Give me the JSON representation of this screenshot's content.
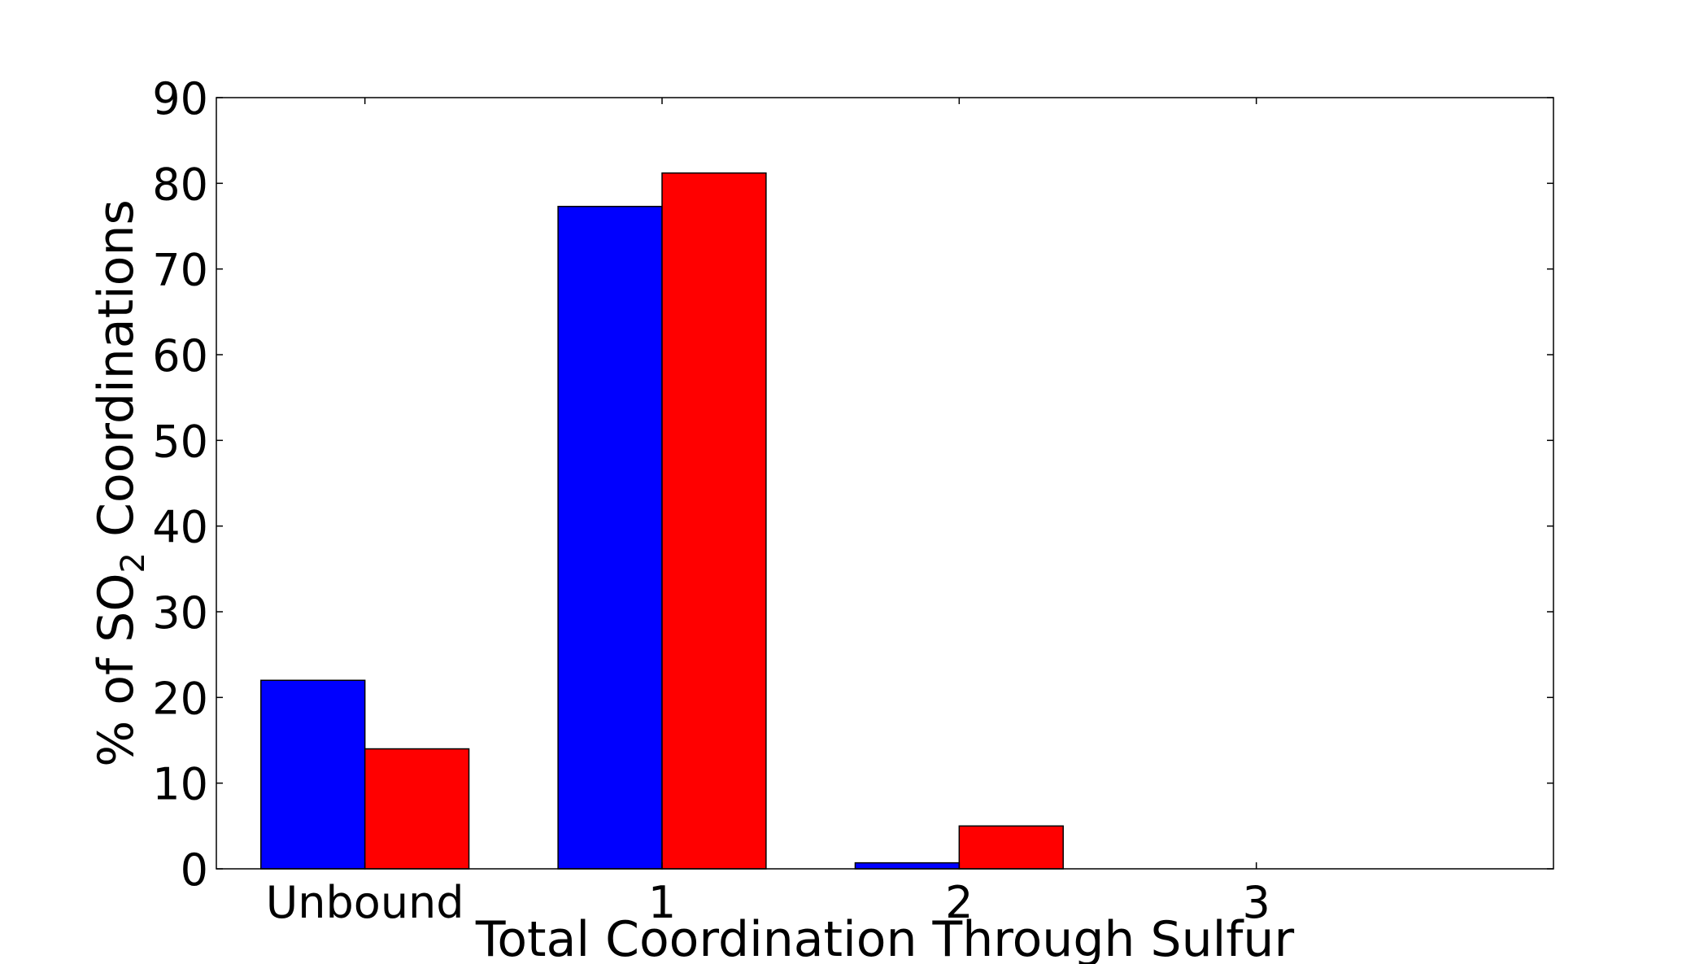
{
  "chart_data": {
    "type": "bar",
    "categories": [
      "Unbound",
      "1",
      "2",
      "3"
    ],
    "series": [
      {
        "color": "#0000ff",
        "values": [
          22.0,
          77.3,
          0.7,
          0.0
        ]
      },
      {
        "color": "#ff0000",
        "values": [
          14.0,
          81.2,
          5.0,
          0.0
        ]
      }
    ],
    "title": "",
    "xlabel": "Total Coordination Through Sulfur",
    "ylabel": {
      "prefix": "% of SO",
      "subscript": "2",
      "suffix": " Coordinations"
    },
    "ylim": [
      0,
      90
    ],
    "yticks": [
      0,
      10,
      20,
      30,
      40,
      50,
      60,
      70,
      80,
      90
    ],
    "xlim": [
      -0.15,
      4.35
    ],
    "grid": false,
    "legend": "none",
    "bar_edge_color": "#000000"
  }
}
